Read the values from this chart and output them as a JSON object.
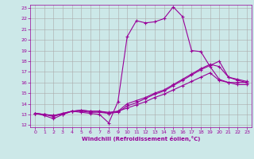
{
  "xlabel": "Windchill (Refroidissement éolien,°C)",
  "bg_color": "#cce8e8",
  "line_color": "#990099",
  "grid_color": "#aaaaaa",
  "xlim": [
    -0.5,
    23.5
  ],
  "ylim": [
    11.8,
    23.3
  ],
  "xticks": [
    0,
    1,
    2,
    3,
    4,
    5,
    6,
    7,
    8,
    9,
    10,
    11,
    12,
    13,
    14,
    15,
    16,
    17,
    18,
    19,
    20,
    21,
    22,
    23
  ],
  "yticks": [
    12,
    13,
    14,
    15,
    16,
    17,
    18,
    19,
    20,
    21,
    22,
    23
  ],
  "lines": [
    [
      13.1,
      12.9,
      12.6,
      13.0,
      13.3,
      13.2,
      13.1,
      13.0,
      12.2,
      14.2,
      20.3,
      21.8,
      21.6,
      21.7,
      22.0,
      23.1,
      22.2,
      19.0,
      18.9,
      17.5,
      16.3,
      16.0,
      16.0,
      16.0
    ],
    [
      13.1,
      13.0,
      12.8,
      13.1,
      13.3,
      13.4,
      13.3,
      13.3,
      13.1,
      13.2,
      13.8,
      14.1,
      14.5,
      14.9,
      15.2,
      15.7,
      16.2,
      16.7,
      17.2,
      17.6,
      18.0,
      16.5,
      16.2,
      16.0
    ],
    [
      13.1,
      13.0,
      12.9,
      13.1,
      13.3,
      13.4,
      13.3,
      13.3,
      13.2,
      13.3,
      14.0,
      14.3,
      14.6,
      15.0,
      15.3,
      15.8,
      16.3,
      16.8,
      17.3,
      17.7,
      17.5,
      16.5,
      16.3,
      16.1
    ],
    [
      13.1,
      13.0,
      12.9,
      13.0,
      13.3,
      13.3,
      13.2,
      13.2,
      13.1,
      13.3,
      13.6,
      13.9,
      14.2,
      14.6,
      14.9,
      15.3,
      15.7,
      16.1,
      16.5,
      16.9,
      16.2,
      16.0,
      15.8,
      15.8
    ]
  ]
}
